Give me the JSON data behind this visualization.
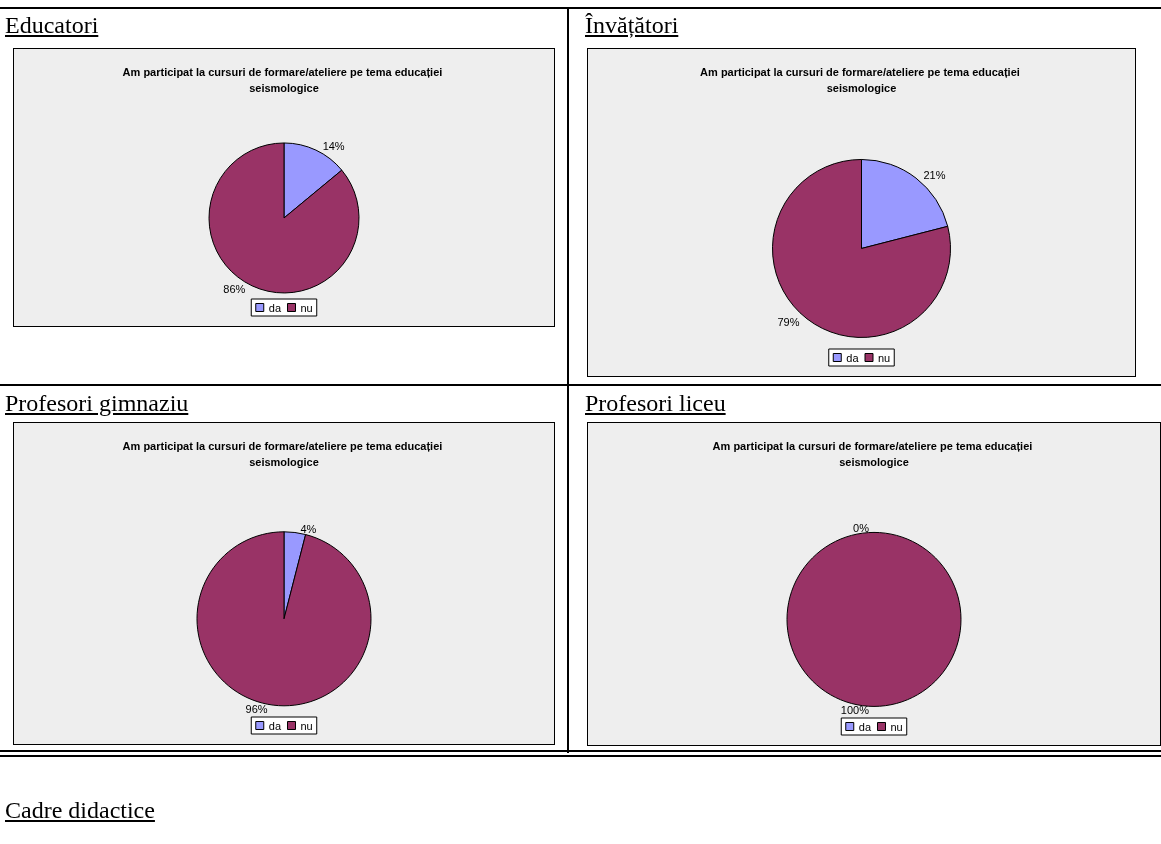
{
  "chart_data": [
    {
      "type": "pie",
      "title": "Educatori",
      "subtitle": "Am participat la cursuri de formare/ateliere pe tema educației seismologice",
      "categories": [
        "da",
        "nu"
      ],
      "values": [
        14,
        86
      ],
      "colors": [
        "#9999ff",
        "#993366"
      ],
      "value_labels": [
        "14%",
        "86%"
      ],
      "legend": "bottom"
    },
    {
      "type": "pie",
      "title": "Învățători",
      "subtitle": "Am participat la cursuri de formare/ateliere pe tema educației seismologice",
      "categories": [
        "da",
        "nu"
      ],
      "values": [
        21,
        79
      ],
      "colors": [
        "#9999ff",
        "#993366"
      ],
      "value_labels": [
        "21%",
        "79%"
      ],
      "legend": "bottom"
    },
    {
      "type": "pie",
      "title": "Profesori gimnaziu",
      "subtitle": "Am participat la cursuri de formare/ateliere pe tema educației seismologice",
      "categories": [
        "da",
        "nu"
      ],
      "values": [
        4,
        96
      ],
      "colors": [
        "#9999ff",
        "#993366"
      ],
      "value_labels": [
        "4%",
        "96%"
      ],
      "legend": "bottom"
    },
    {
      "type": "pie",
      "title": "Profesori liceu",
      "subtitle": "Am participat la cursuri de formare/ateliere pe tema educației seismologice",
      "categories": [
        "da",
        "nu"
      ],
      "values": [
        0,
        100
      ],
      "colors": [
        "#9999ff",
        "#993366"
      ],
      "value_labels": [
        "0%",
        "100%"
      ],
      "legend": "bottom"
    },
    {
      "type": "other",
      "title": "Cadre didactice"
    }
  ]
}
